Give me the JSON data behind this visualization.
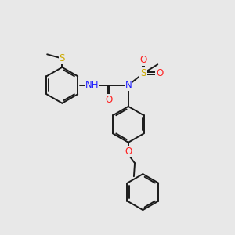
{
  "bg_color": "#e8e8e8",
  "bond_color": "#1a1a1a",
  "bond_width": 1.4,
  "atom_colors": {
    "N": "#2020ff",
    "O": "#ff2020",
    "S": "#ccaa00",
    "C": "#1a1a1a"
  },
  "font_size": 8.5,
  "fig_width": 3.0,
  "fig_height": 3.0,
  "dpi": 100
}
